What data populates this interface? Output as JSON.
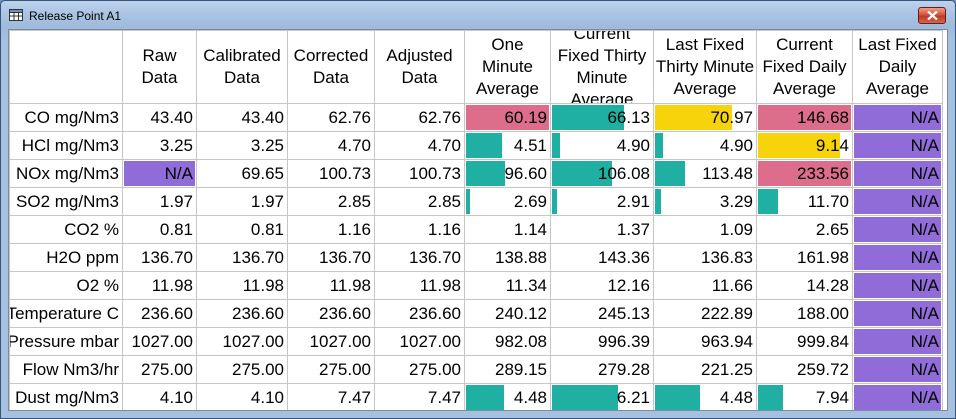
{
  "window": {
    "title": "Release Point A1"
  },
  "icons": {
    "title_icon": "table-icon",
    "close": "close-icon"
  },
  "colors": {
    "teal": "#1fb0a3",
    "pink": "#dc6e8c",
    "gold": "#f6d30a",
    "purple": "#8f6cd8"
  },
  "columns": [
    "Raw Data",
    "Calibrated Data",
    "Corrected Data",
    "Adjusted Data",
    "One Minute Average",
    "Current Fixed Thirty Minute Average",
    "Last Fixed Thirty Minute Average",
    "Current Fixed Daily Average",
    "Last Fixed Daily Average"
  ],
  "rows": [
    {
      "label": "CO mg/Nm3",
      "cells": [
        {
          "v": "43.40"
        },
        {
          "v": "43.40"
        },
        {
          "v": "62.76"
        },
        {
          "v": "62.76"
        },
        {
          "v": "60.19",
          "c": "pink",
          "f": 1
        },
        {
          "v": "66.13",
          "c": "teal",
          "f": 0.72
        },
        {
          "v": "70.97",
          "c": "gold",
          "f": 0.77
        },
        {
          "v": "146.68",
          "c": "pink",
          "f": 1
        },
        {
          "v": "N/A",
          "c": "purple",
          "f": 1
        }
      ]
    },
    {
      "label": "HCl mg/Nm3",
      "cells": [
        {
          "v": "3.25"
        },
        {
          "v": "3.25"
        },
        {
          "v": "4.70"
        },
        {
          "v": "4.70"
        },
        {
          "v": "4.51",
          "c": "teal",
          "f": 0.43
        },
        {
          "v": "4.90",
          "c": "teal",
          "f": 0.08
        },
        {
          "v": "4.90",
          "c": "teal",
          "f": 0.08
        },
        {
          "v": "9.14",
          "c": "gold",
          "f": 0.88
        },
        {
          "v": "N/A",
          "c": "purple",
          "f": 1
        }
      ]
    },
    {
      "label": "NOx mg/Nm3",
      "cells": [
        {
          "v": "N/A",
          "c": "purple",
          "f": 1
        },
        {
          "v": "69.65"
        },
        {
          "v": "100.73"
        },
        {
          "v": "100.73"
        },
        {
          "v": "96.60",
          "c": "teal",
          "f": 0.47
        },
        {
          "v": "106.08",
          "c": "teal",
          "f": 0.6
        },
        {
          "v": "113.48",
          "c": "teal",
          "f": 0.3
        },
        {
          "v": "233.56",
          "c": "pink",
          "f": 1
        },
        {
          "v": "N/A",
          "c": "purple",
          "f": 1
        }
      ]
    },
    {
      "label": "SO2 mg/Nm3",
      "cells": [
        {
          "v": "1.97"
        },
        {
          "v": "1.97"
        },
        {
          "v": "2.85"
        },
        {
          "v": "2.85"
        },
        {
          "v": "2.69",
          "c": "teal",
          "f": 0.05
        },
        {
          "v": "2.91",
          "c": "teal",
          "f": 0.05
        },
        {
          "v": "3.29",
          "c": "teal",
          "f": 0.06
        },
        {
          "v": "11.70",
          "c": "teal",
          "f": 0.22
        },
        {
          "v": "N/A",
          "c": "purple",
          "f": 1
        }
      ]
    },
    {
      "label": "CO2 %",
      "cells": [
        {
          "v": "0.81"
        },
        {
          "v": "0.81"
        },
        {
          "v": "1.16"
        },
        {
          "v": "1.16"
        },
        {
          "v": "1.14"
        },
        {
          "v": "1.37"
        },
        {
          "v": "1.09"
        },
        {
          "v": "2.65"
        },
        {
          "v": "N/A",
          "c": "purple",
          "f": 1
        }
      ]
    },
    {
      "label": "H2O ppm",
      "cells": [
        {
          "v": "136.70"
        },
        {
          "v": "136.70"
        },
        {
          "v": "136.70"
        },
        {
          "v": "136.70"
        },
        {
          "v": "138.88"
        },
        {
          "v": "143.36"
        },
        {
          "v": "136.83"
        },
        {
          "v": "161.98"
        },
        {
          "v": "N/A",
          "c": "purple",
          "f": 1
        }
      ]
    },
    {
      "label": "O2 %",
      "cells": [
        {
          "v": "11.98"
        },
        {
          "v": "11.98"
        },
        {
          "v": "11.98"
        },
        {
          "v": "11.98"
        },
        {
          "v": "11.34"
        },
        {
          "v": "12.16"
        },
        {
          "v": "11.66"
        },
        {
          "v": "14.28"
        },
        {
          "v": "N/A",
          "c": "purple",
          "f": 1
        }
      ]
    },
    {
      "label": "Temperature C",
      "cells": [
        {
          "v": "236.60"
        },
        {
          "v": "236.60"
        },
        {
          "v": "236.60"
        },
        {
          "v": "236.60"
        },
        {
          "v": "240.12"
        },
        {
          "v": "245.13"
        },
        {
          "v": "222.89"
        },
        {
          "v": "188.00"
        },
        {
          "v": "N/A",
          "c": "purple",
          "f": 1
        }
      ]
    },
    {
      "label": "Pressure mbar",
      "cells": [
        {
          "v": "1027.00"
        },
        {
          "v": "1027.00"
        },
        {
          "v": "1027.00"
        },
        {
          "v": "1027.00"
        },
        {
          "v": "982.08"
        },
        {
          "v": "996.39"
        },
        {
          "v": "963.94"
        },
        {
          "v": "999.84"
        },
        {
          "v": "N/A",
          "c": "purple",
          "f": 1
        }
      ]
    },
    {
      "label": "Flow Nm3/hr",
      "cells": [
        {
          "v": "275.00"
        },
        {
          "v": "275.00"
        },
        {
          "v": "275.00"
        },
        {
          "v": "275.00"
        },
        {
          "v": "289.15"
        },
        {
          "v": "279.28"
        },
        {
          "v": "221.25"
        },
        {
          "v": "259.72"
        },
        {
          "v": "N/A",
          "c": "purple",
          "f": 1
        }
      ]
    },
    {
      "label": "Dust mg/Nm3",
      "cells": [
        {
          "v": "4.10"
        },
        {
          "v": "4.10"
        },
        {
          "v": "7.47"
        },
        {
          "v": "7.47"
        },
        {
          "v": "4.48",
          "c": "teal",
          "f": 0.46
        },
        {
          "v": "6.21",
          "c": "teal",
          "f": 0.66
        },
        {
          "v": "4.48",
          "c": "teal",
          "f": 0.45
        },
        {
          "v": "7.94",
          "c": "teal",
          "f": 0.27
        },
        {
          "v": "N/A",
          "c": "purple",
          "f": 1
        }
      ]
    }
  ]
}
